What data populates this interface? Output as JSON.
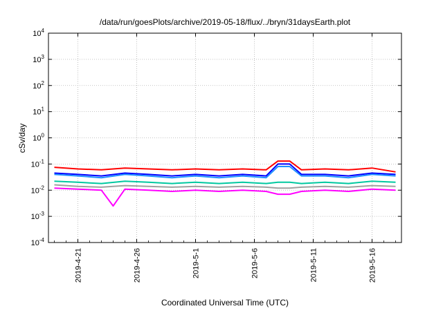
{
  "chart_data": {
    "type": "line",
    "title": "/data/run/goesPlots/archive/2019-05-18/flux/../bryn/31daysEarth.plot",
    "xlabel": "Coordinated Universal Time (UTC)",
    "ylabel": "cSv/day",
    "yscale": "log",
    "ylim": [
      0.0001,
      10000
    ],
    "yticks": [
      {
        "value": 0.0001,
        "base": "10",
        "exp": "-4"
      },
      {
        "value": 0.001,
        "base": "10",
        "exp": "-3"
      },
      {
        "value": 0.01,
        "base": "10",
        "exp": "-2"
      },
      {
        "value": 0.1,
        "base": "10",
        "exp": "-1"
      },
      {
        "value": 1,
        "base": "10",
        "exp": "0"
      },
      {
        "value": 10,
        "base": "10",
        "exp": "1"
      },
      {
        "value": 100,
        "base": "10",
        "exp": "2"
      },
      {
        "value": 1000,
        "base": "10",
        "exp": "3"
      },
      {
        "value": 10000,
        "base": "10",
        "exp": "4"
      }
    ],
    "xlim": [
      "2019-04-18T12:00",
      "2019-05-18T12:00"
    ],
    "xticks": [
      "2019-4-21",
      "2019-4-26",
      "2019-5-1",
      "2019-5-6",
      "2019-5-11",
      "2019-5-16"
    ],
    "grid": true,
    "legend": "none",
    "series": [
      {
        "color": "#ff0000",
        "x": [
          "2019-04-19",
          "2019-04-21",
          "2019-04-23",
          "2019-04-25",
          "2019-04-27",
          "2019-04-29",
          "2019-05-01",
          "2019-05-03",
          "2019-05-05",
          "2019-05-07",
          "2019-05-08",
          "2019-05-09",
          "2019-05-10",
          "2019-05-12",
          "2019-05-14",
          "2019-05-16",
          "2019-05-18"
        ],
        "values": [
          0.075,
          0.065,
          0.06,
          0.07,
          0.065,
          0.06,
          0.065,
          0.06,
          0.065,
          0.06,
          0.13,
          0.13,
          0.06,
          0.065,
          0.06,
          0.07,
          0.05
        ]
      },
      {
        "color": "#0000ff",
        "x": [
          "2019-04-19",
          "2019-04-21",
          "2019-04-23",
          "2019-04-25",
          "2019-04-27",
          "2019-04-29",
          "2019-05-01",
          "2019-05-03",
          "2019-05-05",
          "2019-05-07",
          "2019-05-08",
          "2019-05-09",
          "2019-05-10",
          "2019-05-12",
          "2019-05-14",
          "2019-05-16",
          "2019-05-18"
        ],
        "values": [
          0.045,
          0.04,
          0.035,
          0.045,
          0.04,
          0.035,
          0.04,
          0.035,
          0.04,
          0.035,
          0.1,
          0.1,
          0.04,
          0.04,
          0.035,
          0.045,
          0.04
        ]
      },
      {
        "color": "#1e90ff",
        "x": [
          "2019-04-19",
          "2019-04-21",
          "2019-04-23",
          "2019-04-25",
          "2019-04-27",
          "2019-04-29",
          "2019-05-01",
          "2019-05-03",
          "2019-05-05",
          "2019-05-07",
          "2019-05-08",
          "2019-05-09",
          "2019-05-10",
          "2019-05-12",
          "2019-05-14",
          "2019-05-16",
          "2019-05-18"
        ],
        "values": [
          0.04,
          0.035,
          0.03,
          0.04,
          0.035,
          0.03,
          0.035,
          0.03,
          0.035,
          0.03,
          0.08,
          0.08,
          0.035,
          0.035,
          0.03,
          0.04,
          0.035
        ]
      },
      {
        "color": "#00c8a0",
        "x": [
          "2019-04-19",
          "2019-04-21",
          "2019-04-23",
          "2019-04-25",
          "2019-04-27",
          "2019-04-29",
          "2019-05-01",
          "2019-05-03",
          "2019-05-05",
          "2019-05-07",
          "2019-05-08",
          "2019-05-09",
          "2019-05-10",
          "2019-05-12",
          "2019-05-14",
          "2019-05-16",
          "2019-05-18"
        ],
        "values": [
          0.022,
          0.02,
          0.018,
          0.022,
          0.02,
          0.018,
          0.02,
          0.018,
          0.02,
          0.018,
          0.02,
          0.02,
          0.018,
          0.02,
          0.018,
          0.022,
          0.02
        ]
      },
      {
        "color": "#a0a0a0",
        "x": [
          "2019-04-19",
          "2019-04-21",
          "2019-04-23",
          "2019-04-25",
          "2019-04-27",
          "2019-04-29",
          "2019-05-01",
          "2019-05-03",
          "2019-05-05",
          "2019-05-07",
          "2019-05-08",
          "2019-05-09",
          "2019-05-10",
          "2019-05-12",
          "2019-05-14",
          "2019-05-16",
          "2019-05-18"
        ],
        "values": [
          0.016,
          0.014,
          0.013,
          0.015,
          0.014,
          0.013,
          0.014,
          0.013,
          0.014,
          0.013,
          0.012,
          0.012,
          0.013,
          0.014,
          0.013,
          0.015,
          0.014
        ]
      },
      {
        "color": "#ff00ff",
        "x": [
          "2019-04-19",
          "2019-04-21",
          "2019-04-23",
          "2019-04-24",
          "2019-04-25",
          "2019-04-27",
          "2019-04-29",
          "2019-05-01",
          "2019-05-03",
          "2019-05-05",
          "2019-05-07",
          "2019-05-08",
          "2019-05-09",
          "2019-05-10",
          "2019-05-12",
          "2019-05-14",
          "2019-05-16",
          "2019-05-18"
        ],
        "values": [
          0.012,
          0.011,
          0.01,
          0.0025,
          0.011,
          0.01,
          0.009,
          0.01,
          0.009,
          0.01,
          0.009,
          0.007,
          0.007,
          0.009,
          0.01,
          0.009,
          0.011,
          0.01
        ]
      }
    ]
  }
}
